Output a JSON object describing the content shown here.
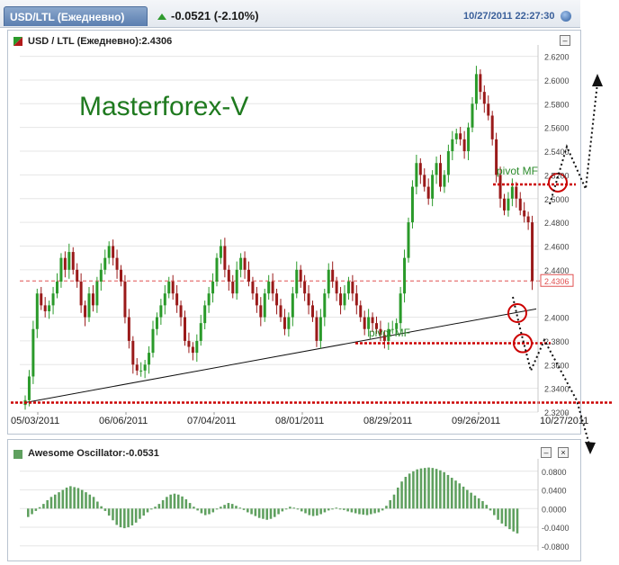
{
  "header": {
    "tab_label": "USD/LTL (Ежедневно)",
    "change": "-0.0521 (-2.10%)",
    "datetime": "10/27/2011 22:27:30"
  },
  "main_panel": {
    "title": "USD / LTL (Ежедневно):2.4306",
    "collapse_label": "–",
    "watermark": "Masterforex-V",
    "annotation_upper": "pivot MF",
    "annotation_lower": "pivot MF",
    "last_price_label": "2.4306"
  },
  "osc_panel": {
    "title": "Awesome Oscillator:-0.0531",
    "collapse_label": "–",
    "close_label": "×"
  },
  "colors": {
    "up": "#2a9a2a",
    "down": "#9a1a1a",
    "osc": "#5fa05f",
    "pivot": "#cc0000",
    "watermark": "#1f7a1f",
    "last_price": "#e05050"
  },
  "chart_data": [
    {
      "type": "candlestick",
      "title": "USD / LTL (Ежедневно):2.4306",
      "x_tick_labels": [
        "05/03/2011",
        "06/06/2011",
        "07/04/2011",
        "08/01/2011",
        "08/29/2011",
        "09/26/2011",
        "10/27/2011"
      ],
      "y_tick_labels": [
        "2.6200",
        "2.6000",
        "2.5800",
        "2.5600",
        "2.5400",
        "2.5200",
        "2.5000",
        "2.4800",
        "2.4600",
        "2.4400",
        "2.4306",
        "2.4000",
        "2.3800",
        "2.3600",
        "2.3400",
        "2.3200"
      ],
      "ylim": [
        2.32,
        2.625
      ],
      "last_price": 2.4306,
      "pivot_levels": [
        2.512,
        2.378
      ],
      "support_levels": [
        2.328
      ],
      "trendline": [
        [
          0,
          2.328
        ],
        [
          128,
          2.407
        ]
      ],
      "closes": [
        2.33,
        2.35,
        2.39,
        2.42,
        2.41,
        2.405,
        2.41,
        2.42,
        2.43,
        2.45,
        2.44,
        2.455,
        2.44,
        2.43,
        2.41,
        2.4,
        2.42,
        2.41,
        2.43,
        2.44,
        2.45,
        2.46,
        2.45,
        2.44,
        2.43,
        2.4,
        2.38,
        2.36,
        2.355,
        2.355,
        2.36,
        2.37,
        2.39,
        2.4,
        2.41,
        2.42,
        2.43,
        2.42,
        2.41,
        2.4,
        2.38,
        2.375,
        2.37,
        2.38,
        2.395,
        2.41,
        2.42,
        2.43,
        2.45,
        2.46,
        2.44,
        2.43,
        2.42,
        2.44,
        2.45,
        2.44,
        2.43,
        2.42,
        2.41,
        2.4,
        2.42,
        2.43,
        2.42,
        2.41,
        2.4,
        2.39,
        2.4,
        2.42,
        2.44,
        2.43,
        2.42,
        2.41,
        2.4,
        2.38,
        2.4,
        2.42,
        2.44,
        2.43,
        2.42,
        2.41,
        2.42,
        2.43,
        2.42,
        2.41,
        2.4,
        2.39,
        2.4,
        2.395,
        2.39,
        2.385,
        2.38,
        2.39,
        2.39,
        2.395,
        2.42,
        2.45,
        2.48,
        2.51,
        2.53,
        2.52,
        2.51,
        2.5,
        2.52,
        2.53,
        2.51,
        2.52,
        2.54,
        2.55,
        2.555,
        2.55,
        2.54,
        2.56,
        2.58,
        2.605,
        2.59,
        2.58,
        2.57,
        2.55,
        2.52,
        2.5,
        2.49,
        2.5,
        2.51,
        2.5,
        2.49,
        2.485,
        2.48,
        2.4306
      ]
    },
    {
      "type": "bar",
      "title": "Awesome Oscillator:-0.0531",
      "y_tick_labels": [
        "0.0800",
        "0.0400",
        "0.0000",
        "-0.0400",
        "-0.0800"
      ],
      "ylim": [
        -0.09,
        0.095
      ],
      "values": [
        -0.018,
        -0.012,
        -0.005,
        0.003,
        0.01,
        0.018,
        0.025,
        0.03,
        0.035,
        0.04,
        0.045,
        0.048,
        0.046,
        0.044,
        0.04,
        0.035,
        0.03,
        0.025,
        0.015,
        0.005,
        -0.005,
        -0.015,
        -0.025,
        -0.035,
        -0.04,
        -0.042,
        -0.04,
        -0.036,
        -0.03,
        -0.022,
        -0.015,
        -0.008,
        -0.002,
        0.004,
        0.01,
        0.018,
        0.025,
        0.03,
        0.032,
        0.03,
        0.026,
        0.02,
        0.012,
        0.004,
        -0.004,
        -0.01,
        -0.014,
        -0.012,
        -0.008,
        -0.002,
        0.004,
        0.008,
        0.012,
        0.01,
        0.006,
        0.002,
        -0.003,
        -0.008,
        -0.012,
        -0.016,
        -0.02,
        -0.022,
        -0.024,
        -0.022,
        -0.018,
        -0.012,
        -0.006,
        0.0,
        0.004,
        0.002,
        -0.002,
        -0.006,
        -0.01,
        -0.014,
        -0.016,
        -0.015,
        -0.012,
        -0.008,
        -0.004,
        0.0,
        0.002,
        0.0,
        -0.003,
        -0.006,
        -0.008,
        -0.01,
        -0.012,
        -0.013,
        -0.014,
        -0.012,
        -0.01,
        -0.008,
        -0.004,
        0.006,
        0.018,
        0.03,
        0.045,
        0.058,
        0.068,
        0.075,
        0.08,
        0.084,
        0.086,
        0.087,
        0.088,
        0.087,
        0.085,
        0.082,
        0.078,
        0.072,
        0.066,
        0.06,
        0.054,
        0.047,
        0.04,
        0.034,
        0.028,
        0.022,
        0.016,
        0.008,
        -0.004,
        -0.014,
        -0.024,
        -0.032,
        -0.038,
        -0.044,
        -0.049,
        -0.0531
      ]
    }
  ]
}
